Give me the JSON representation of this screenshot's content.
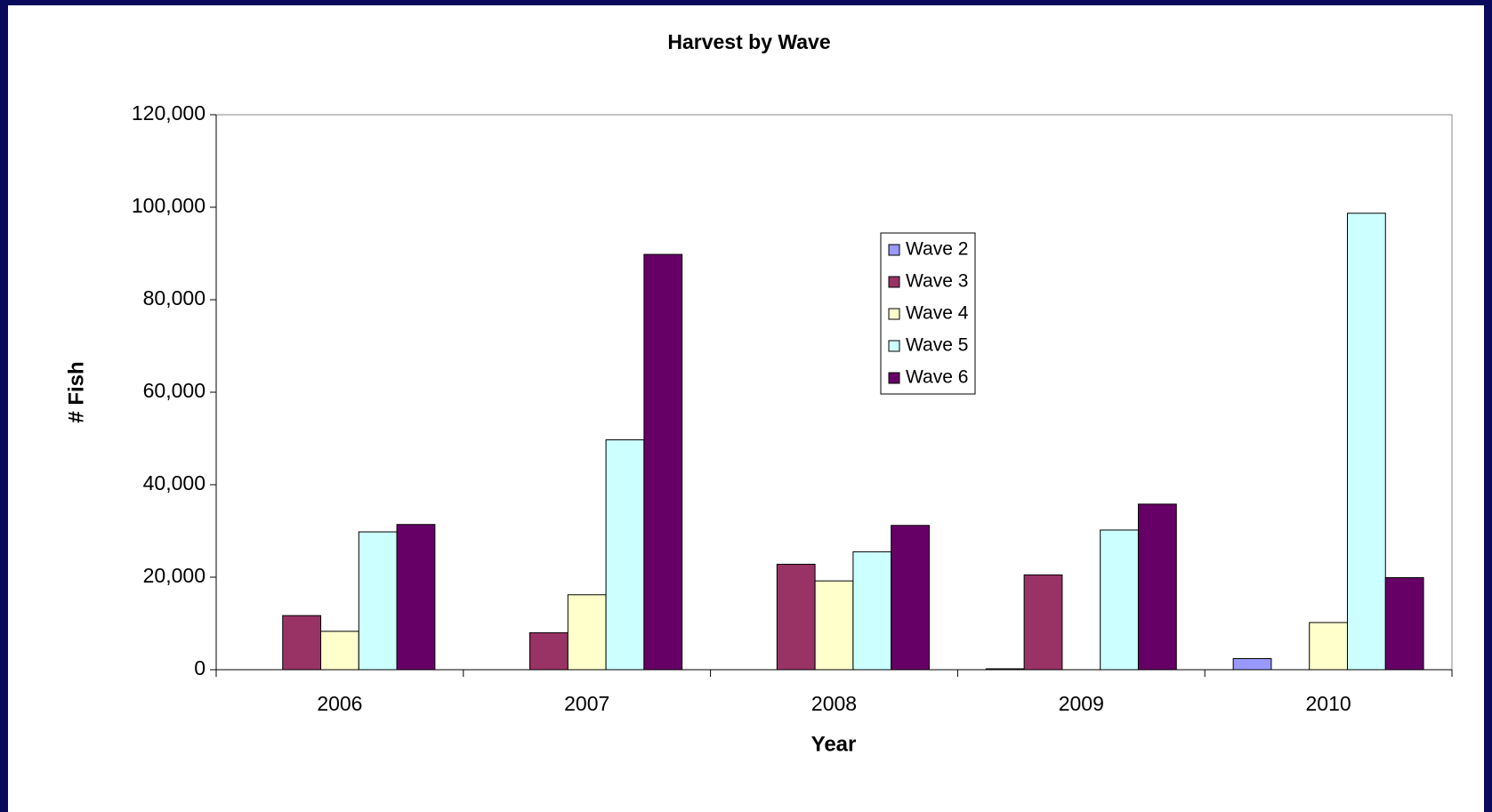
{
  "chart_data": {
    "type": "bar",
    "title": "Harvest by Wave",
    "x_label": "Year",
    "y_label": "# Fish",
    "categories": [
      "2006",
      "2007",
      "2008",
      "2009",
      "2010"
    ],
    "series": [
      {
        "name": "Wave 2",
        "color": "#9999ff",
        "values": [
          0,
          0,
          0,
          200,
          2400
        ]
      },
      {
        "name": "Wave 3",
        "color": "#993366",
        "values": [
          11700,
          8000,
          22800,
          20500,
          0
        ]
      },
      {
        "name": "Wave 4",
        "color": "#ffffcc",
        "values": [
          8300,
          16200,
          19200,
          0,
          10200
        ]
      },
      {
        "name": "Wave 5",
        "color": "#ccffff",
        "values": [
          29800,
          49700,
          25500,
          30200,
          98700
        ]
      },
      {
        "name": "Wave 6",
        "color": "#660066",
        "values": [
          31400,
          89800,
          31200,
          35800,
          19900
        ]
      }
    ],
    "ylim": [
      0,
      120000
    ],
    "yticks": [
      0,
      {
        "value": 20000,
        "label": "20,000"
      },
      {
        "value": 40000,
        "label": "40,000"
      },
      {
        "value": 60000,
        "label": "60,000"
      },
      {
        "value": 80000,
        "label": "80,000"
      },
      {
        "value": 100000,
        "label": "100,000"
      },
      {
        "value": 120000,
        "label": "120,000"
      }
    ]
  }
}
